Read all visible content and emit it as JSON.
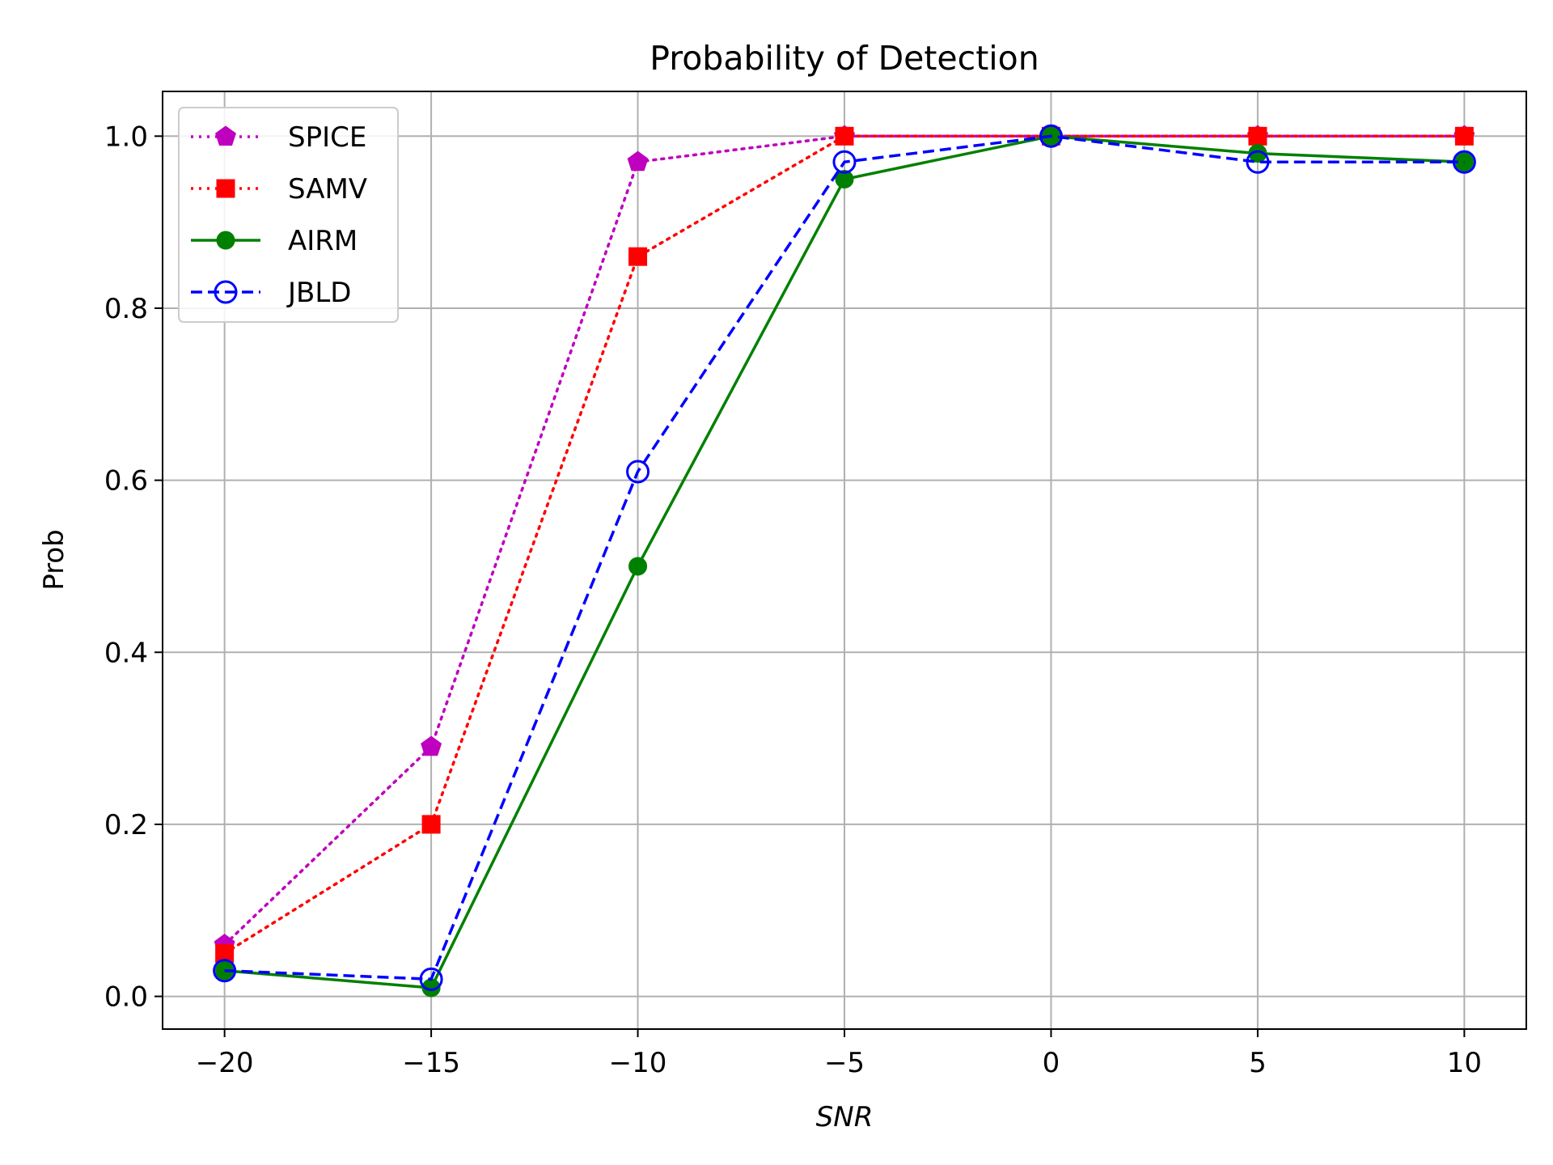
{
  "chart_data": {
    "type": "line",
    "title": "Probability of Detection",
    "xlabel": "SNR",
    "ylabel": "Prob",
    "x": [
      -20,
      -15,
      -10,
      -5,
      0,
      5,
      10
    ],
    "xlim": [
      -21.5,
      11.5
    ],
    "ylim": [
      -0.038,
      1.052
    ],
    "xticks": [
      -20,
      -15,
      -10,
      -5,
      0,
      5,
      10
    ],
    "xtick_labels": [
      "−20",
      "−15",
      "−10",
      "−5",
      "0",
      "5",
      "10"
    ],
    "yticks": [
      0.0,
      0.2,
      0.4,
      0.6,
      0.8,
      1.0
    ],
    "ytick_labels": [
      "0.0",
      "0.2",
      "0.4",
      "0.6",
      "0.8",
      "1.0"
    ],
    "grid": true,
    "legend_position": "top-left",
    "series": [
      {
        "name": "SPICE",
        "color": "#bf00bf",
        "line": "dotted",
        "marker": "pentagon",
        "values": [
          0.06,
          0.29,
          0.97,
          1.0,
          1.0,
          1.0,
          1.0
        ]
      },
      {
        "name": "SAMV",
        "color": "#ff0000",
        "line": "dotted",
        "marker": "square",
        "values": [
          0.05,
          0.2,
          0.86,
          1.0,
          1.0,
          1.0,
          1.0
        ]
      },
      {
        "name": "AIRM",
        "color": "#008000",
        "line": "solid",
        "marker": "filled-circle",
        "values": [
          0.03,
          0.01,
          0.5,
          0.95,
          1.0,
          0.98,
          0.97
        ]
      },
      {
        "name": "JBLD",
        "color": "#0000ff",
        "line": "dashed",
        "marker": "open-circle",
        "values": [
          0.03,
          0.02,
          0.61,
          0.97,
          1.0,
          0.97,
          0.97
        ]
      }
    ]
  }
}
